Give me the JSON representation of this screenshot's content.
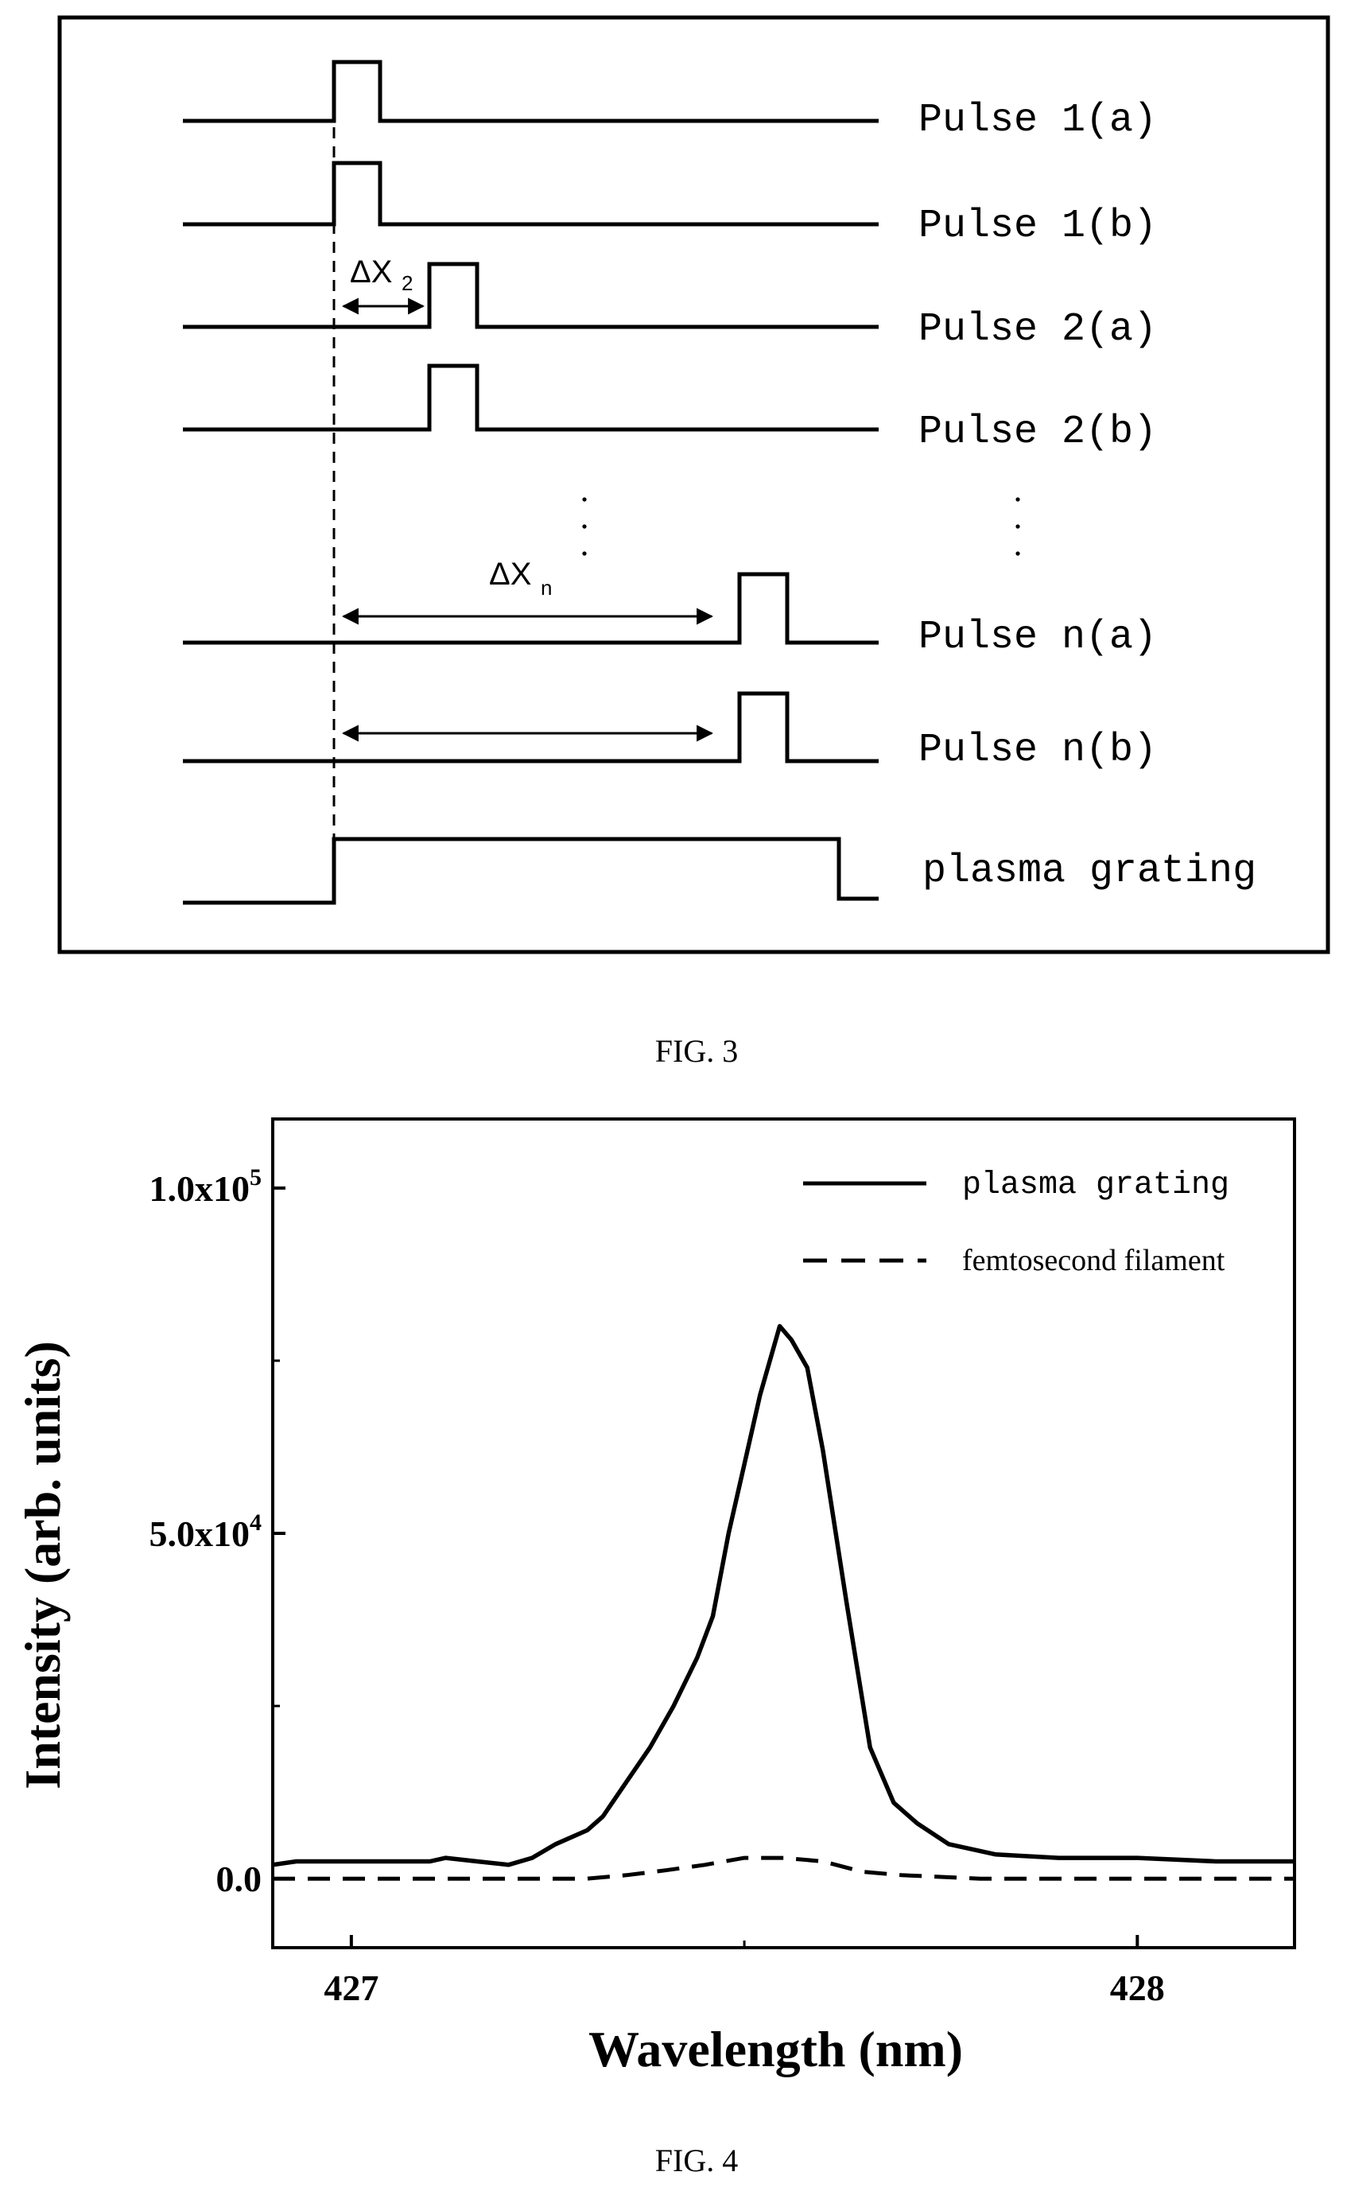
{
  "fig3": {
    "caption": "FIG. 3",
    "delta_x2_label": "ΔX",
    "delta_x2_sub": "2",
    "delta_xn_label": "ΔX",
    "delta_xn_sub": "n",
    "ellipsis": "⋮",
    "pulses": [
      {
        "label": "Pulse 1(a)"
      },
      {
        "label": "Pulse 1(b)"
      },
      {
        "label": "Pulse 2(a)"
      },
      {
        "label": "Pulse 2(b)"
      },
      {
        "label": "Pulse n(a)"
      },
      {
        "label": "Pulse n(b)"
      },
      {
        "label": "plasma grating"
      }
    ]
  },
  "fig4": {
    "caption": "FIG. 4",
    "chart_data": {
      "type": "line",
      "xlabel": "Wavelength (nm)",
      "ylabel": "Intensity (arb. units)",
      "xlim": [
        426.9,
        428.2
      ],
      "ylim": [
        -10000,
        110000
      ],
      "x_ticks": [
        {
          "value": 427,
          "label": "427"
        },
        {
          "value": 428,
          "label": "428"
        }
      ],
      "y_ticks": [
        {
          "value": 0,
          "mantissa": "0.0",
          "exp": ""
        },
        {
          "value": 50000,
          "mantissa": "5.0x10",
          "exp": "4"
        },
        {
          "value": 100000,
          "mantissa": "1.0x10",
          "exp": "5"
        }
      ],
      "legend_position": "top-right",
      "series": [
        {
          "name": "plasma grating",
          "style": "solid",
          "x": [
            426.9,
            426.93,
            426.97,
            427.05,
            427.1,
            427.12,
            427.16,
            427.2,
            427.23,
            427.26,
            427.3,
            427.32,
            427.35,
            427.38,
            427.41,
            427.44,
            427.46,
            427.48,
            427.5,
            427.52,
            427.545,
            427.56,
            427.58,
            427.6,
            427.63,
            427.66,
            427.69,
            427.72,
            427.76,
            427.82,
            427.9,
            428.0,
            428.1,
            428.2
          ],
          "y": [
            2000,
            2500,
            2500,
            2500,
            2500,
            3000,
            2500,
            2000,
            3000,
            5000,
            7000,
            9000,
            14000,
            19000,
            25000,
            32000,
            38000,
            50000,
            60000,
            70000,
            80000,
            78000,
            74000,
            62000,
            40000,
            19000,
            11000,
            8000,
            5000,
            3500,
            3000,
            3000,
            2500,
            2500
          ]
        },
        {
          "name": "femtosecond filament",
          "style": "dashed",
          "x": [
            426.9,
            427.0,
            427.1,
            427.2,
            427.3,
            427.35,
            427.4,
            427.45,
            427.5,
            427.55,
            427.6,
            427.65,
            427.7,
            427.8,
            427.9,
            428.0,
            428.1,
            428.2
          ],
          "y": [
            0,
            0,
            0,
            0,
            0,
            500,
            1200,
            2000,
            3000,
            3000,
            2500,
            1000,
            500,
            0,
            0,
            0,
            0,
            0
          ]
        }
      ]
    }
  }
}
